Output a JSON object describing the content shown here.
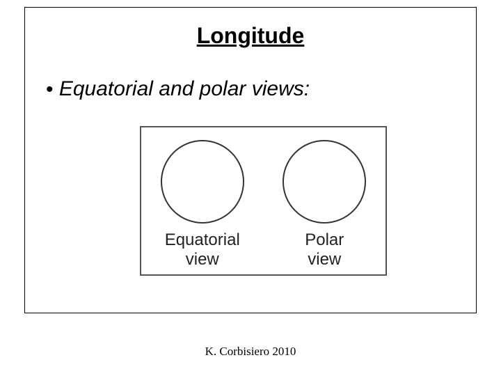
{
  "slide": {
    "title": "Longitude",
    "bullet": "Equatorial and polar views:",
    "footer": "K. Corbisiero 2010"
  },
  "diagram": {
    "type": "infographic",
    "border_color": "#555555",
    "background_color": "#ffffff",
    "views": [
      {
        "label_line1": "Equatorial",
        "label_line2": "view",
        "circle_color": "#333333",
        "circle_diameter": 120,
        "circle_stroke": 2
      },
      {
        "label_line1": "Polar",
        "label_line2": "view",
        "circle_color": "#333333",
        "circle_diameter": 120,
        "circle_stroke": 2
      }
    ],
    "label_fontsize": 24,
    "label_color": "#222222"
  },
  "layout": {
    "slide_width": 720,
    "slide_height": 540,
    "inner_border_color": "#000000",
    "title_fontsize": 32,
    "bullet_fontsize": 30,
    "footer_fontsize": 17
  }
}
